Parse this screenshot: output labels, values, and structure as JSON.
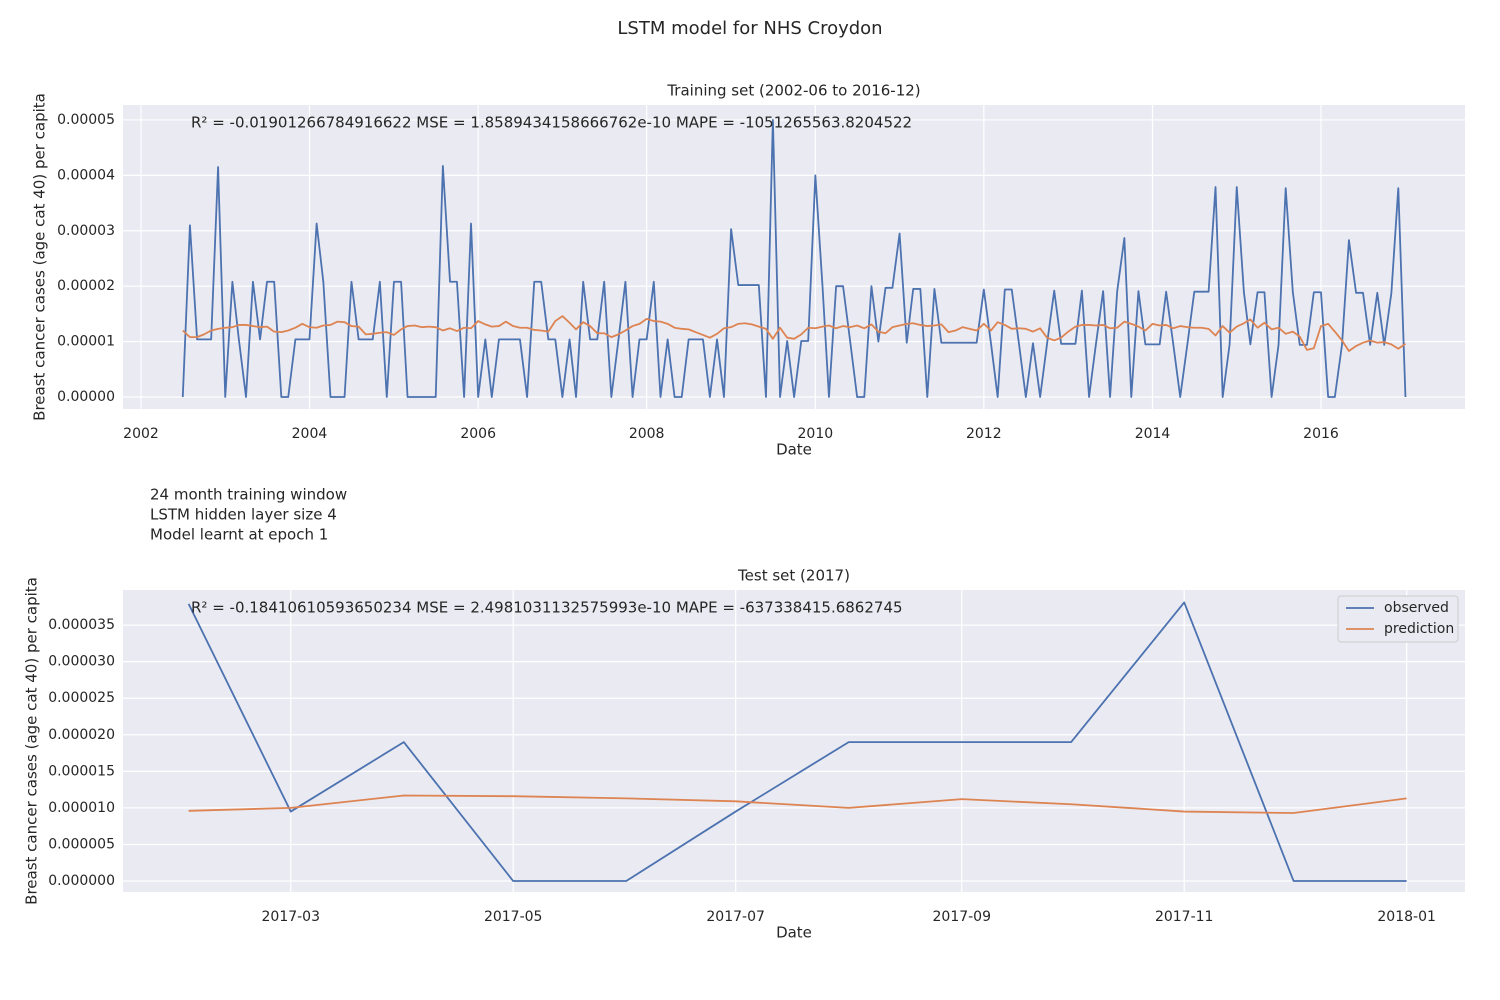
{
  "title": "LSTM model for NHS Croydon",
  "notes": [
    "24 month training window",
    "LSTM hidden layer size 4",
    "Model learnt at epoch 1"
  ],
  "chart_data": [
    {
      "type": "line",
      "title": "Training set (2002-06 to 2016-12)",
      "x_label": "Date",
      "y_label": "Breast cancer cases (age cat 40) per capita",
      "annotation": "R² = -0.01901266784916622  MSE = 1.8589434158666762e-10  MAPE = -1051265563.8204522",
      "grid": true,
      "x": [
        "2002-07",
        "2002-08",
        "2002-09",
        "2002-10",
        "2002-11",
        "2002-12",
        "2003-01",
        "2003-02",
        "2003-03",
        "2003-04",
        "2003-05",
        "2003-06",
        "2003-07",
        "2003-08",
        "2003-09",
        "2003-10",
        "2003-11",
        "2003-12",
        "2004-01",
        "2004-02",
        "2004-03",
        "2004-04",
        "2004-05",
        "2004-06",
        "2004-07",
        "2004-08",
        "2004-09",
        "2004-10",
        "2004-11",
        "2004-12",
        "2005-01",
        "2005-02",
        "2005-03",
        "2005-04",
        "2005-05",
        "2005-06",
        "2005-07",
        "2005-08",
        "2005-09",
        "2005-10",
        "2005-11",
        "2005-12",
        "2006-01",
        "2006-02",
        "2006-03",
        "2006-04",
        "2006-05",
        "2006-06",
        "2006-07",
        "2006-08",
        "2006-09",
        "2006-10",
        "2006-11",
        "2006-12",
        "2007-01",
        "2007-02",
        "2007-03",
        "2007-04",
        "2007-05",
        "2007-06",
        "2007-07",
        "2007-08",
        "2007-09",
        "2007-10",
        "2007-11",
        "2007-12",
        "2008-01",
        "2008-02",
        "2008-03",
        "2008-04",
        "2008-05",
        "2008-06",
        "2008-07",
        "2008-08",
        "2008-09",
        "2008-10",
        "2008-11",
        "2008-12",
        "2009-01",
        "2009-02",
        "2009-03",
        "2009-04",
        "2009-05",
        "2009-06",
        "2009-07",
        "2009-08",
        "2009-09",
        "2009-10",
        "2009-11",
        "2009-12",
        "2010-01",
        "2010-02",
        "2010-03",
        "2010-04",
        "2010-05",
        "2010-06",
        "2010-07",
        "2010-08",
        "2010-09",
        "2010-10",
        "2010-11",
        "2010-12",
        "2011-01",
        "2011-02",
        "2011-03",
        "2011-04",
        "2011-05",
        "2011-06",
        "2011-07",
        "2011-08",
        "2011-09",
        "2011-10",
        "2011-11",
        "2011-12",
        "2012-01",
        "2012-02",
        "2012-03",
        "2012-04",
        "2012-05",
        "2012-06",
        "2012-07",
        "2012-08",
        "2012-09",
        "2012-10",
        "2012-11",
        "2012-12",
        "2013-01",
        "2013-02",
        "2013-03",
        "2013-04",
        "2013-05",
        "2013-06",
        "2013-07",
        "2013-08",
        "2013-09",
        "2013-10",
        "2013-11",
        "2013-12",
        "2014-01",
        "2014-02",
        "2014-03",
        "2014-04",
        "2014-05",
        "2014-06",
        "2014-07",
        "2014-08",
        "2014-09",
        "2014-10",
        "2014-11",
        "2014-12",
        "2015-01",
        "2015-02",
        "2015-03",
        "2015-04",
        "2015-05",
        "2015-06",
        "2015-07",
        "2015-08",
        "2015-09",
        "2015-10",
        "2015-11",
        "2015-12",
        "2016-01",
        "2016-02",
        "2016-03",
        "2016-04",
        "2016-05",
        "2016-06",
        "2016-07",
        "2016-08",
        "2016-09",
        "2016-10",
        "2016-11",
        "2016-12",
        "2017-01"
      ],
      "series": [
        {
          "name": "observed",
          "color": "#4c72b0",
          "values": [
            0,
            3.1e-05,
            1.04e-05,
            1.04e-05,
            1.04e-05,
            4.15e-05,
            0,
            2.08e-05,
            1.04e-05,
            0,
            2.08e-05,
            1.04e-05,
            2.08e-05,
            2.08e-05,
            0,
            0,
            1.04e-05,
            1.04e-05,
            1.04e-05,
            3.13e-05,
            2.08e-05,
            0,
            0,
            0,
            2.08e-05,
            1.04e-05,
            1.04e-05,
            1.04e-05,
            2.08e-05,
            0,
            2.08e-05,
            2.08e-05,
            0,
            0,
            0,
            0,
            0,
            4.17e-05,
            2.08e-05,
            2.08e-05,
            0,
            3.13e-05,
            0,
            1.04e-05,
            0,
            1.04e-05,
            1.04e-05,
            1.04e-05,
            1.04e-05,
            0,
            2.08e-05,
            2.08e-05,
            1.04e-05,
            1.04e-05,
            0,
            1.04e-05,
            0,
            2.08e-05,
            1.04e-05,
            1.04e-05,
            2.08e-05,
            0,
            1.04e-05,
            2.08e-05,
            0,
            1.04e-05,
            1.04e-05,
            2.08e-05,
            0,
            1.04e-05,
            0,
            0,
            1.04e-05,
            1.04e-05,
            1.04e-05,
            0,
            1.04e-05,
            0,
            3.03e-05,
            2.02e-05,
            2.02e-05,
            2.02e-05,
            2.02e-05,
            0,
            5e-05,
            0,
            1.01e-05,
            0,
            1.01e-05,
            1.01e-05,
            4e-05,
            2e-05,
            0,
            2e-05,
            2e-05,
            1e-05,
            0,
            0,
            2e-05,
            1e-05,
            1.97e-05,
            1.97e-05,
            2.95e-05,
            9.8e-06,
            1.95e-05,
            1.95e-05,
            0,
            1.95e-05,
            9.8e-06,
            9.8e-06,
            9.8e-06,
            9.8e-06,
            9.8e-06,
            9.8e-06,
            1.94e-05,
            9.7e-06,
            0,
            1.94e-05,
            1.94e-05,
            9.7e-06,
            0,
            9.7e-06,
            0,
            9.6e-06,
            1.92e-05,
            9.6e-06,
            9.6e-06,
            9.6e-06,
            1.92e-05,
            0,
            9.6e-06,
            1.91e-05,
            0,
            1.91e-05,
            2.87e-05,
            0,
            1.91e-05,
            9.5e-06,
            9.5e-06,
            9.5e-06,
            1.9e-05,
            9.5e-06,
            0,
            9.5e-06,
            1.9e-05,
            1.9e-05,
            1.9e-05,
            3.79e-05,
            0,
            9.5e-06,
            3.79e-05,
            1.89e-05,
            9.5e-06,
            1.89e-05,
            1.89e-05,
            0,
            9.4e-06,
            3.77e-05,
            1.89e-05,
            9.4e-06,
            9.4e-06,
            1.89e-05,
            1.89e-05,
            0,
            0,
            9.4e-06,
            2.83e-05,
            1.88e-05,
            1.88e-05,
            9.4e-06,
            1.88e-05,
            9.4e-06,
            1.88e-05,
            3.77e-05,
            0
          ]
        },
        {
          "name": "prediction",
          "color": "#dd8452",
          "values": [
            1.2e-05,
            1.08e-05,
            1.08e-05,
            1.13e-05,
            1.2e-05,
            1.23e-05,
            1.25e-05,
            1.26e-05,
            1.3e-05,
            1.3e-05,
            1.28e-05,
            1.26e-05,
            1.27e-05,
            1.18e-05,
            1.17e-05,
            1.2e-05,
            1.25e-05,
            1.32e-05,
            1.26e-05,
            1.25e-05,
            1.29e-05,
            1.3e-05,
            1.36e-05,
            1.35e-05,
            1.28e-05,
            1.27e-05,
            1.13e-05,
            1.14e-05,
            1.16e-05,
            1.17e-05,
            1.12e-05,
            1.22e-05,
            1.28e-05,
            1.29e-05,
            1.26e-05,
            1.27e-05,
            1.26e-05,
            1.2e-05,
            1.24e-05,
            1.19e-05,
            1.25e-05,
            1.24e-05,
            1.37e-05,
            1.31e-05,
            1.27e-05,
            1.28e-05,
            1.36e-05,
            1.28e-05,
            1.25e-05,
            1.25e-05,
            1.21e-05,
            1.2e-05,
            1.18e-05,
            1.37e-05,
            1.46e-05,
            1.34e-05,
            1.22e-05,
            1.35e-05,
            1.28e-05,
            1.15e-05,
            1.15e-05,
            1.08e-05,
            1.13e-05,
            1.2e-05,
            1.28e-05,
            1.32e-05,
            1.41e-05,
            1.37e-05,
            1.36e-05,
            1.32e-05,
            1.25e-05,
            1.23e-05,
            1.22e-05,
            1.17e-05,
            1.12e-05,
            1.07e-05,
            1.14e-05,
            1.24e-05,
            1.26e-05,
            1.32e-05,
            1.33e-05,
            1.31e-05,
            1.27e-05,
            1.23e-05,
            1.05e-05,
            1.25e-05,
            1.07e-05,
            1.05e-05,
            1.13e-05,
            1.25e-05,
            1.24e-05,
            1.27e-05,
            1.29e-05,
            1.24e-05,
            1.28e-05,
            1.26e-05,
            1.29e-05,
            1.24e-05,
            1.31e-05,
            1.18e-05,
            1.15e-05,
            1.26e-05,
            1.29e-05,
            1.32e-05,
            1.33e-05,
            1.3e-05,
            1.28e-05,
            1.29e-05,
            1.31e-05,
            1.17e-05,
            1.2e-05,
            1.26e-05,
            1.23e-05,
            1.2e-05,
            1.32e-05,
            1.2e-05,
            1.35e-05,
            1.3e-05,
            1.23e-05,
            1.24e-05,
            1.23e-05,
            1.18e-05,
            1.24e-05,
            1.07e-05,
            1.02e-05,
            1.07e-05,
            1.18e-05,
            1.27e-05,
            1.3e-05,
            1.3e-05,
            1.29e-05,
            1.3e-05,
            1.24e-05,
            1.25e-05,
            1.36e-05,
            1.32e-05,
            1.27e-05,
            1.2e-05,
            1.32e-05,
            1.29e-05,
            1.3e-05,
            1.24e-05,
            1.28e-05,
            1.26e-05,
            1.25e-05,
            1.25e-05,
            1.23e-05,
            1.11e-05,
            1.28e-05,
            1.16e-05,
            1.27e-05,
            1.33e-05,
            1.4e-05,
            1.25e-05,
            1.34e-05,
            1.22e-05,
            1.25e-05,
            1.14e-05,
            1.18e-05,
            1.09e-05,
            8.5e-06,
            8.8e-06,
            1.28e-05,
            1.32e-05,
            1.18e-05,
            1.02e-05,
            8.3e-06,
            9.2e-06,
            9.8e-06,
            1.02e-05,
            9.8e-06,
            9.9e-06,
            9.5e-06,
            8.7e-06,
            9.6e-06
          ]
        }
      ],
      "xlim": [
        "2001-10-15",
        "2017-09-16"
      ],
      "xticks": [
        2002,
        2004,
        2006,
        2008,
        2010,
        2012,
        2014,
        2016
      ],
      "ylim": [
        -2.17e-06,
        5.27e-05
      ],
      "yticks": [
        {
          "value": 0,
          "label": "0.00000"
        },
        {
          "value": 1e-05,
          "label": "0.00001"
        },
        {
          "value": 2e-05,
          "label": "0.00002"
        },
        {
          "value": 3e-05,
          "label": "0.00003"
        },
        {
          "value": 4e-05,
          "label": "0.00004"
        },
        {
          "value": 5e-05,
          "label": "0.00005"
        }
      ]
    },
    {
      "type": "line",
      "title": "Test set (2017)",
      "x_label": "Date",
      "y_label": "Breast cancer cases (age cat 40) per capita",
      "annotation": "R² = -0.18410610593650234  MSE = 2.4981031132575993e-10  MAPE = -637338415.6862745",
      "grid": true,
      "legend": "upper right",
      "x": [
        "2017-02",
        "2017-03",
        "2017-04",
        "2017-05",
        "2017-06",
        "2017-07",
        "2017-08",
        "2017-09",
        "2017-10",
        "2017-11",
        "2017-12",
        "2018-01"
      ],
      "series": [
        {
          "name": "observed",
          "color": "#4c72b0",
          "values": [
            3.79e-05,
            9.5e-06,
            1.9e-05,
            0,
            0,
            9.5e-06,
            1.9e-05,
            1.9e-05,
            1.9e-05,
            3.81e-05,
            0,
            0
          ]
        },
        {
          "name": "prediction",
          "color": "#dd8452",
          "values": [
            9.6e-06,
            1e-05,
            1.17e-05,
            1.16e-05,
            1.13e-05,
            1.09e-05,
            1e-05,
            1.12e-05,
            1.05e-05,
            9.5e-06,
            9.3e-06,
            1.13e-05
          ]
        }
      ],
      "xlim": [
        "2017-01-14",
        "2018-01-17"
      ],
      "xticks": [
        "2017-03",
        "2017-05",
        "2017-07",
        "2017-09",
        "2017-11",
        "2018-01"
      ],
      "ylim": [
        -1.5e-06,
        3.98e-05
      ],
      "yticks": [
        {
          "value": 0,
          "label": "0.000000"
        },
        {
          "value": 5e-06,
          "label": "0.000005"
        },
        {
          "value": 1e-05,
          "label": "0.000010"
        },
        {
          "value": 1.5e-05,
          "label": "0.000015"
        },
        {
          "value": 2e-05,
          "label": "0.000020"
        },
        {
          "value": 2.5e-05,
          "label": "0.000025"
        },
        {
          "value": 3e-05,
          "label": "0.000030"
        },
        {
          "value": 3.5e-05,
          "label": "0.000035"
        }
      ]
    }
  ]
}
